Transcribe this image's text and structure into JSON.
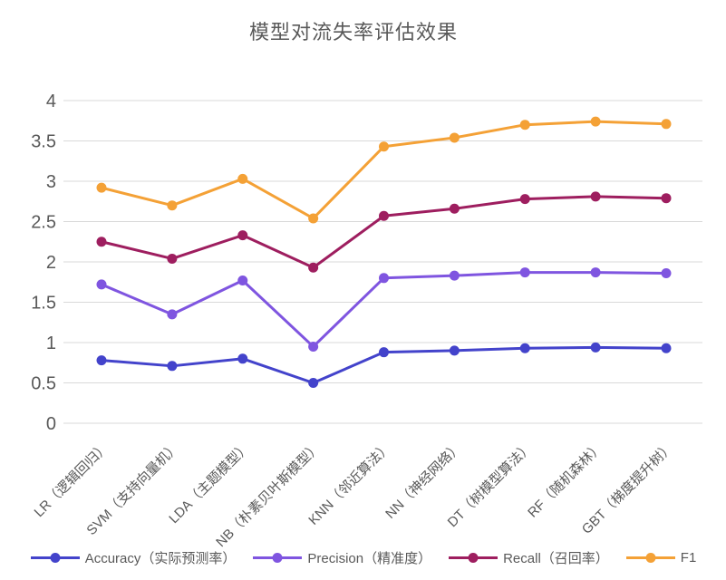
{
  "chart_data": {
    "type": "line",
    "title": "模型对流失率评估效果",
    "categories": [
      "LR（逻辑回归）",
      "SVM（支持向量机）",
      "LDA（主题模型）",
      "NB（朴素贝叶斯模型）",
      "KNN（邻近算法）",
      "NN（神经网络）",
      "DT（树模型算法）",
      "RF（随机森林）",
      "GBT（梯度提升树）"
    ],
    "series": [
      {
        "name": "Accuracy（实际预测率）",
        "color": "#4343cb",
        "values": [
          0.78,
          0.71,
          0.8,
          0.5,
          0.88,
          0.9,
          0.93,
          0.94,
          0.93
        ]
      },
      {
        "name": "Precision（精准度）",
        "color": "#7f55e0",
        "values": [
          1.72,
          1.35,
          1.77,
          0.95,
          1.8,
          1.83,
          1.87,
          1.87,
          1.86
        ]
      },
      {
        "name": "Recall（召回率）",
        "color": "#9e1e5f",
        "values": [
          2.25,
          2.04,
          2.33,
          1.93,
          2.57,
          2.66,
          2.78,
          2.81,
          2.79
        ]
      },
      {
        "name": "F1",
        "color": "#f4a136",
        "values": [
          2.92,
          2.7,
          3.03,
          2.54,
          3.43,
          3.54,
          3.7,
          3.74,
          3.71
        ]
      }
    ],
    "ylim": [
      0,
      4
    ],
    "ytick_step": 0.5,
    "grid": "horizontal",
    "gridline_color": "#d9d9d9",
    "text_color": "#595959",
    "legend_position": "bottom",
    "x_label_rotation": 45
  }
}
